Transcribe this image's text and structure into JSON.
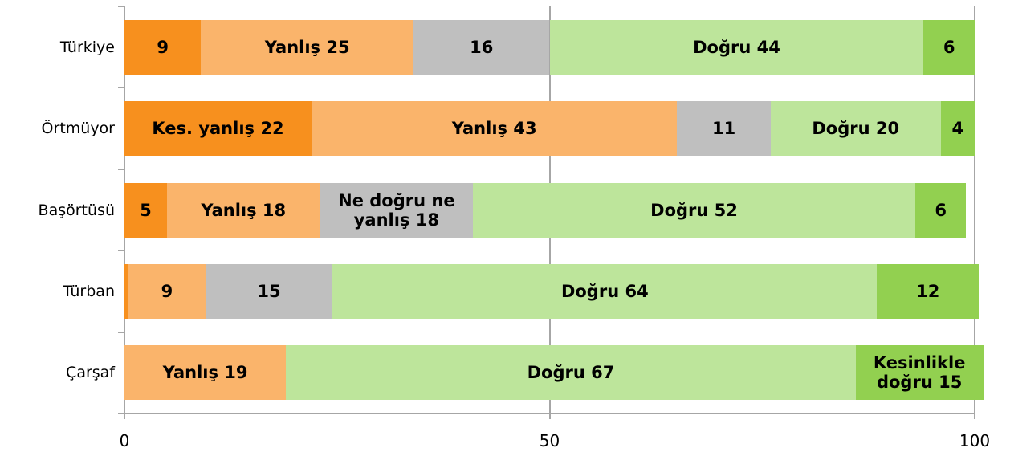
{
  "chart_data": {
    "type": "stacked-bar-horizontal",
    "categories": [
      "Türkiye",
      "Örtmüyor",
      "Başörtüsü",
      "Türban",
      "Çarşaf"
    ],
    "series": [
      {
        "color": "#f7901e",
        "values": [
          9,
          22,
          5,
          0.5,
          null
        ],
        "value_labels": [
          "9",
          "Kes. yanlış 22",
          "5",
          null,
          null
        ]
      },
      {
        "color": "#fab46b",
        "values": [
          25,
          43,
          18,
          9,
          19
        ],
        "value_labels": [
          "Yanlış 25",
          "Yanlış 43",
          "Yanlış 18",
          "9",
          "Yanlış 19"
        ]
      },
      {
        "color": "#bfbfbf",
        "values": [
          16,
          11,
          18,
          15,
          null
        ],
        "value_labels": [
          "16",
          "11",
          "Ne doğru ne\nyanlış 18",
          "15",
          null
        ]
      },
      {
        "color": "#bde59b",
        "values": [
          44,
          20,
          52,
          64,
          67
        ],
        "value_labels": [
          "Doğru 44",
          "Doğru 20",
          "Doğru 52",
          "Doğru 64",
          "Doğru 67"
        ]
      },
      {
        "color": "#92d050",
        "values": [
          6,
          4,
          6,
          12,
          15
        ],
        "value_labels": [
          "6",
          "4",
          "6",
          "12",
          "Kesinlikle\ndoğru 15"
        ]
      }
    ],
    "xlim": [
      0,
      100
    ],
    "xticks": [
      0,
      50,
      100
    ],
    "grid": true
  }
}
